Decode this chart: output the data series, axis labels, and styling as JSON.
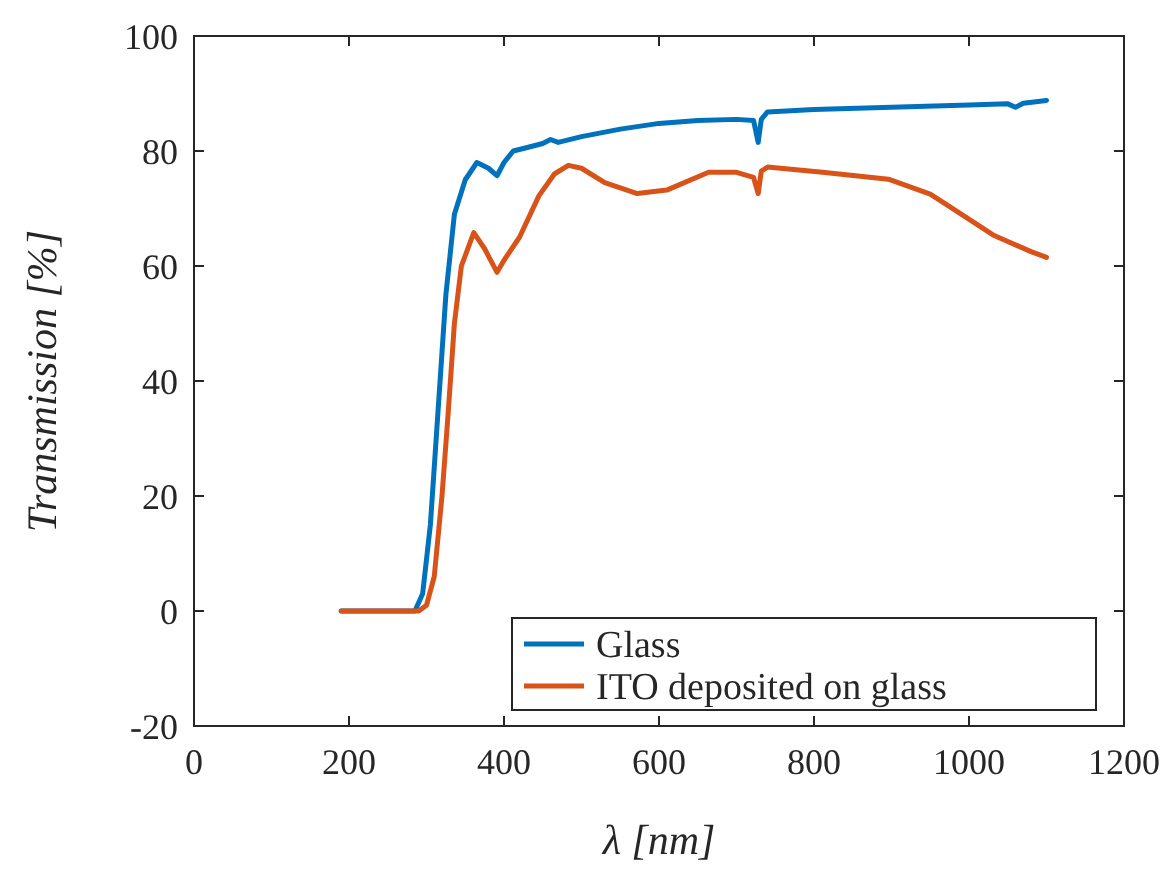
{
  "chart_data": {
    "type": "line",
    "xlabel": "λ [nm]",
    "ylabel": "Transmission [%]",
    "xlim": [
      0,
      1200
    ],
    "xticks": [
      0,
      200,
      400,
      600,
      800,
      1000,
      1200
    ],
    "ylim": [
      -20,
      100
    ],
    "yticks": [
      -20,
      0,
      20,
      40,
      60,
      80,
      100
    ],
    "grid": false,
    "legend": "bottom right",
    "marker": "none",
    "line_style": "solid",
    "series": [
      {
        "name": "Glass",
        "color": "#0072bd",
        "x": [
          190,
          250,
          285,
          295,
          305,
          315,
          325,
          336,
          350,
          365,
          380,
          391,
          400,
          412,
          430,
          450,
          460,
          470,
          500,
          550,
          600,
          650,
          700,
          722,
          728,
          732,
          740,
          800,
          900,
          1000,
          1050,
          1060,
          1070,
          1100
        ],
        "values": [
          0,
          0,
          0,
          3,
          15,
          35,
          55,
          69,
          75,
          78,
          77,
          75.7,
          78,
          80,
          80.6,
          81.3,
          82,
          81.5,
          82.5,
          83.8,
          84.8,
          85.3,
          85.5,
          85.3,
          81.5,
          85.5,
          86.8,
          87.2,
          87.6,
          88,
          88.2,
          87.6,
          88.3,
          88.8
        ]
      },
      {
        "name": "ITO deposited on glass",
        "color": "#d95319",
        "x": [
          190,
          250,
          290,
          300,
          310,
          320,
          328,
          336,
          345,
          361,
          375,
          391,
          400,
          420,
          445,
          465,
          483,
          500,
          530,
          572,
          610,
          664,
          700,
          722,
          728,
          732,
          740,
          811,
          896,
          950,
          980,
          1031,
          1080,
          1100
        ],
        "values": [
          0,
          0,
          0,
          1,
          6,
          20,
          34.5,
          50,
          60,
          65.8,
          63,
          58.9,
          61,
          65,
          72.2,
          76,
          77.5,
          77,
          74.5,
          72.6,
          73.2,
          76.3,
          76.3,
          75.4,
          72.6,
          76.5,
          77.2,
          76.3,
          75.1,
          72.5,
          69.9,
          65.4,
          62.5,
          61.5
        ]
      }
    ]
  }
}
